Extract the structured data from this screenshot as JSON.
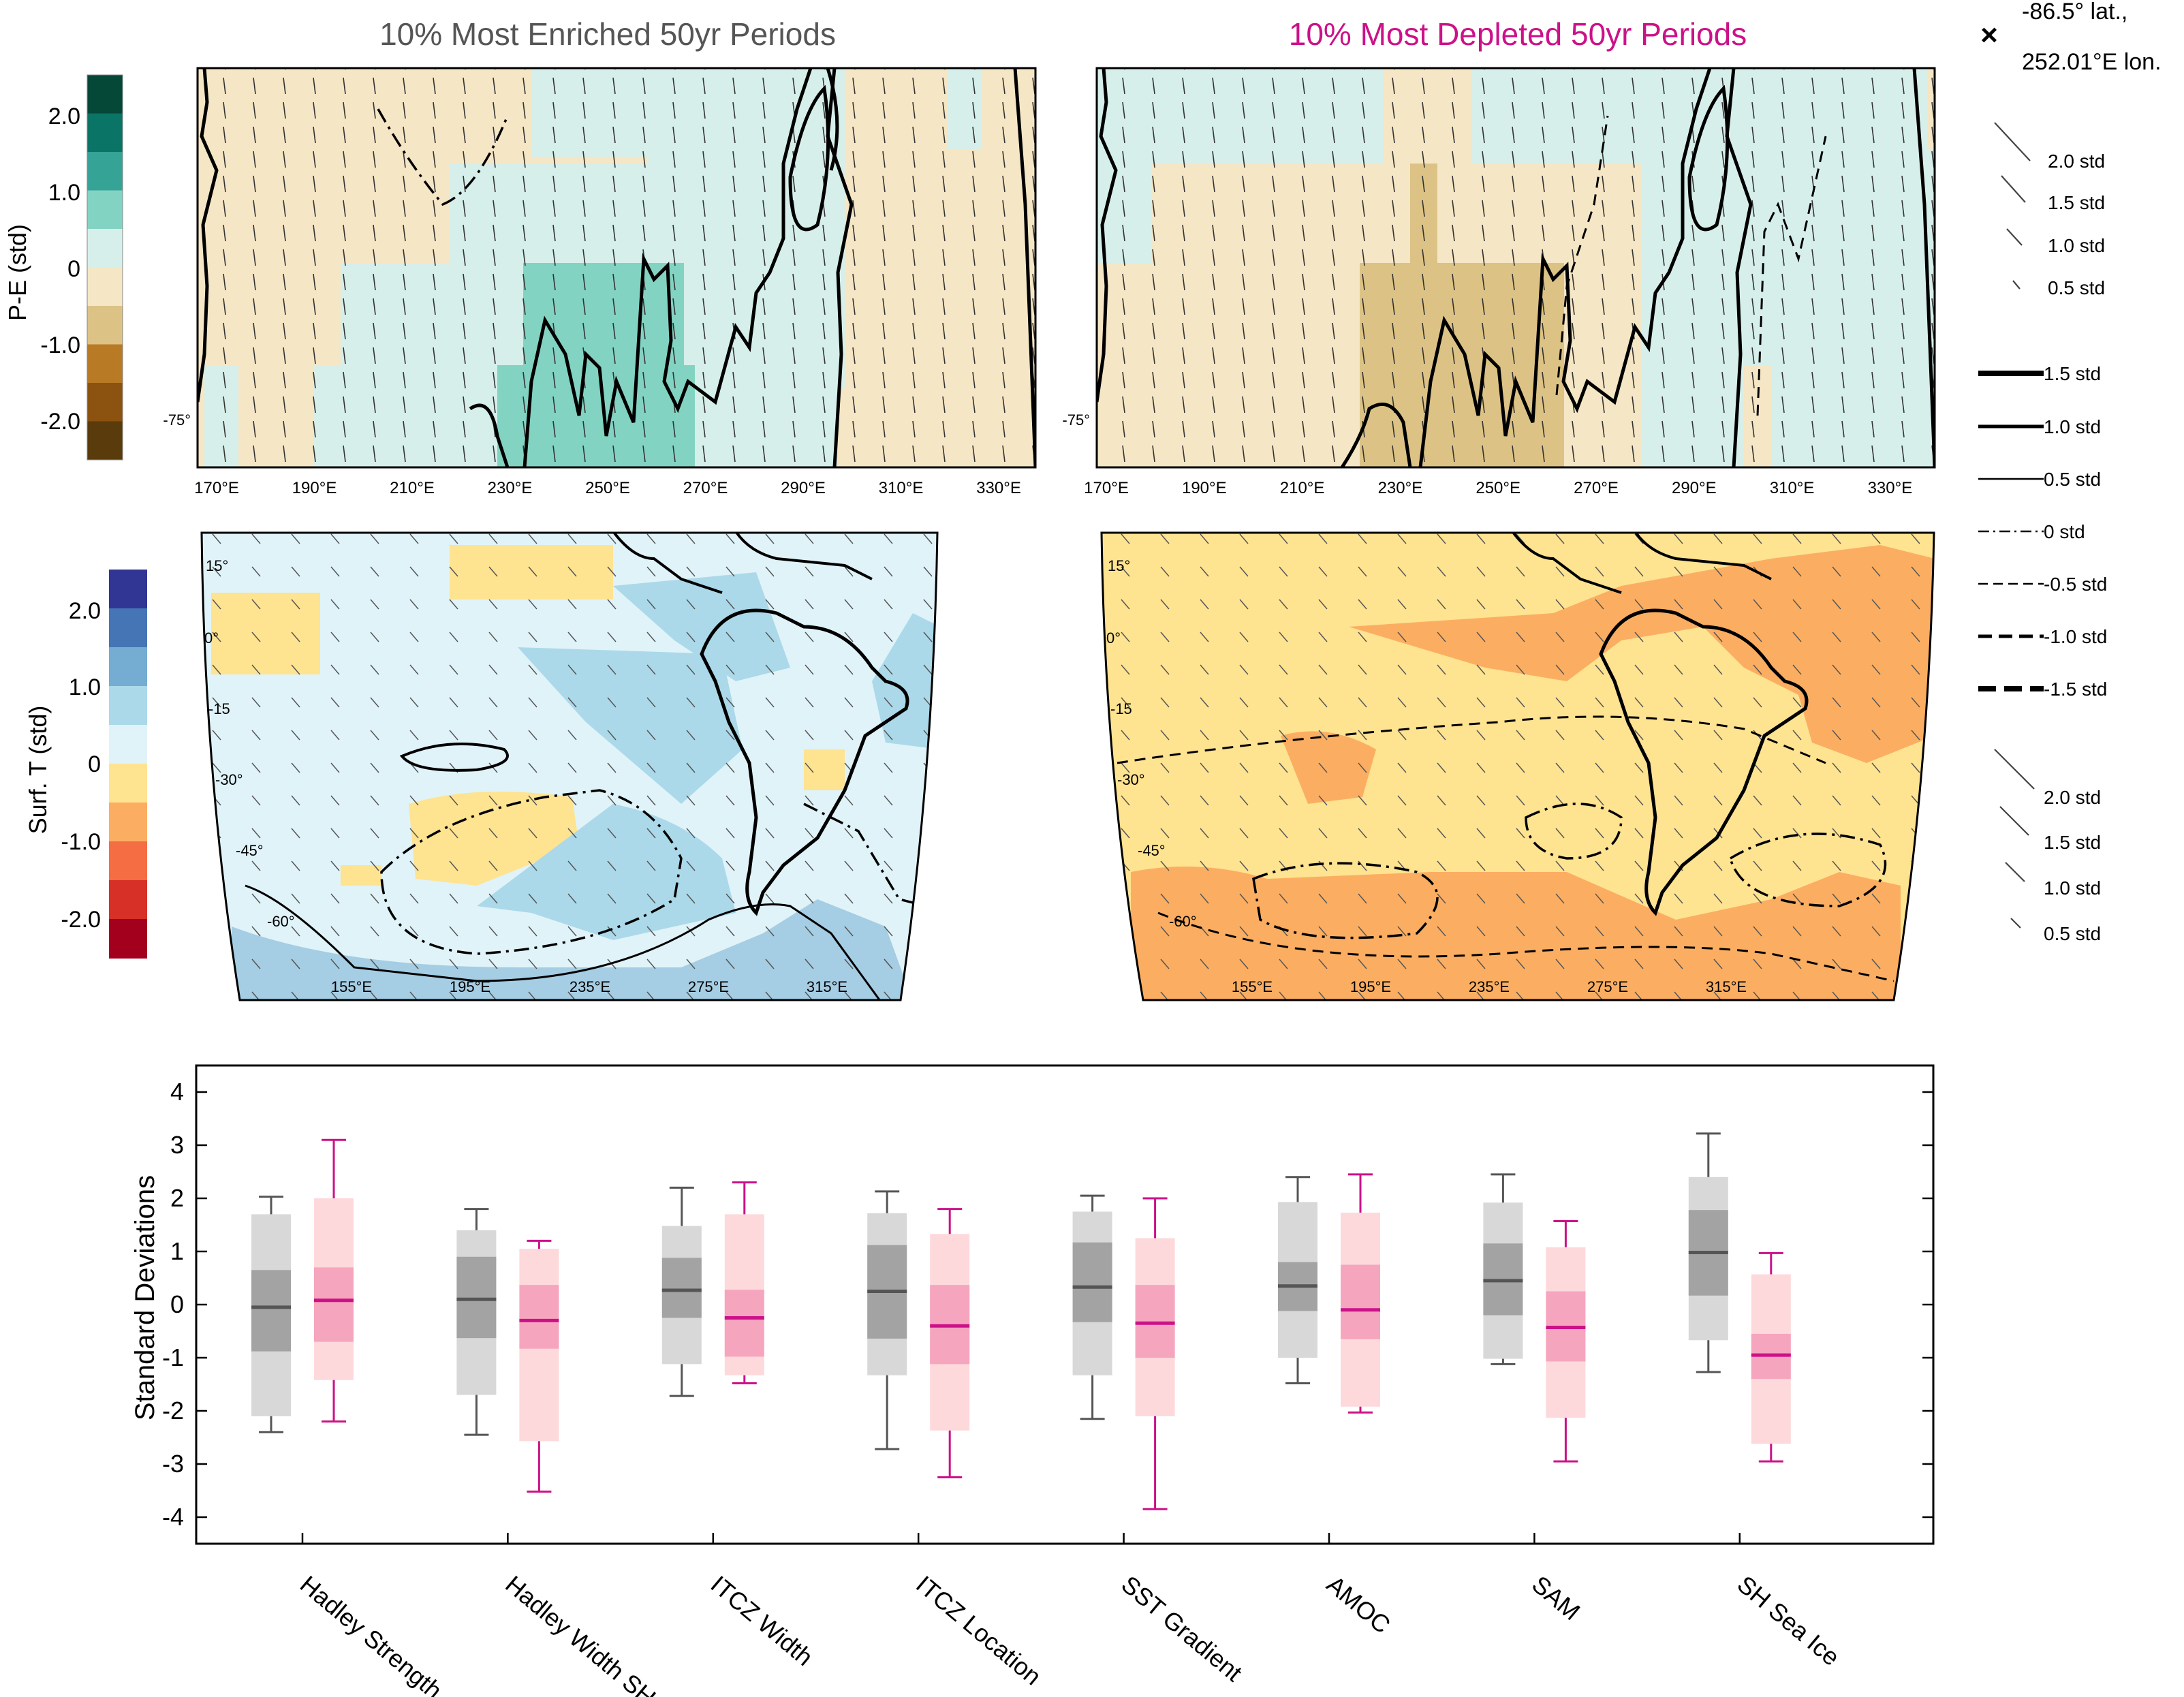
{
  "titles": {
    "enriched": "10% Most Enriched 50yr Periods",
    "depleted": "10% Most Depleted 50yr Periods"
  },
  "location": {
    "line1": "-86.5° lat.,",
    "line2": "252.01°E lon."
  },
  "colors": {
    "enriched_title": "#555555",
    "depleted_title": "#cc1188",
    "enriched_box_outer": "#d8d8d8",
    "enriched_box_inner": "#a3a3a3",
    "enriched_median": "#555555",
    "depleted_box_outer": "#fdd9dc",
    "depleted_box_inner": "#f6a5bf",
    "depleted_median": "#cc1188",
    "pe_scale": [
      "#5a3b0b",
      "#8c520f",
      "#b87a25",
      "#dcc385",
      "#f5e6c5",
      "#d6efea",
      "#83d3c3",
      "#36a397",
      "#0a7466",
      "#064838"
    ],
    "t_scale": [
      "#a3001e",
      "#d73027",
      "#f46d43",
      "#fbae61",
      "#fee391",
      "#e0f3f8",
      "#abd9e9",
      "#74add1",
      "#4575b4",
      "#313695"
    ]
  },
  "pe_colorbar": {
    "label": "P-E (std)",
    "ticks": [
      "2.0",
      "1.0",
      "0",
      "-1.0",
      "-2.0"
    ]
  },
  "t_colorbar": {
    "label": "Surf. T (std)",
    "ticks": [
      "2.0",
      "1.0",
      "0",
      "-1.0",
      "-2.0"
    ]
  },
  "pe_map": {
    "lat_label": "-75°",
    "lon_labels": [
      "170°E",
      "190°E",
      "210°E",
      "230°E",
      "250°E",
      "270°E",
      "290°E",
      "310°E",
      "330°E"
    ]
  },
  "t_map": {
    "lat_labels": [
      "15°",
      "0°",
      "-15",
      "-30°",
      "-45°",
      "-60°"
    ],
    "lon_labels": [
      "155°E",
      "195°E",
      "235°E",
      "275°E",
      "315°E"
    ]
  },
  "legend": {
    "arrows_top": [
      "2.0 std",
      "1.5 std",
      "1.0 std",
      "0.5 std"
    ],
    "lines": [
      "1.5 std",
      "1.0 std",
      "0.5 std",
      "0 std",
      "-0.5 std",
      "-1.0 std",
      "-1.5 std"
    ],
    "arrows_bottom": [
      "2.0 std",
      "1.5 std",
      "1.0 std",
      "0.5 std"
    ]
  },
  "chart_data": {
    "type": "box",
    "ylabel": "Standard Deviations",
    "ylim": [
      -4.5,
      4.5
    ],
    "yticks": [
      4,
      3,
      2,
      1,
      0,
      -1,
      -2,
      -3,
      -4
    ],
    "categories": [
      "Hadley Strength",
      "Hadley Width SH",
      "ITCZ Width",
      "ITCZ Location",
      "SST Gradient",
      "AMOC",
      "SAM",
      "SH Sea Ice"
    ],
    "series": [
      {
        "stats": [
          {
            "whisker_low": -2.4,
            "p10": -2.1,
            "q1": -0.88,
            "median": -0.05,
            "q3": 0.65,
            "p90": 1.7,
            "whisker_high": 2.03
          },
          {
            "whisker_low": -2.45,
            "p10": -1.7,
            "q1": -0.63,
            "median": 0.1,
            "q3": 0.9,
            "p90": 1.4,
            "whisker_high": 1.8
          },
          {
            "whisker_low": -1.72,
            "p10": -1.12,
            "q1": -0.25,
            "median": 0.27,
            "q3": 0.88,
            "p90": 1.48,
            "whisker_high": 2.2
          },
          {
            "whisker_low": -2.72,
            "p10": -1.33,
            "q1": -0.64,
            "median": 0.25,
            "q3": 1.12,
            "p90": 1.72,
            "whisker_high": 2.13
          },
          {
            "whisker_low": -2.15,
            "p10": -1.33,
            "q1": -0.33,
            "median": 0.33,
            "q3": 1.17,
            "p90": 1.75,
            "whisker_high": 2.05
          },
          {
            "whisker_low": -1.48,
            "p10": -1.0,
            "q1": -0.12,
            "median": 0.35,
            "q3": 0.8,
            "p90": 1.93,
            "whisker_high": 2.4
          },
          {
            "whisker_low": -1.12,
            "p10": -1.02,
            "q1": -0.2,
            "median": 0.45,
            "q3": 1.15,
            "p90": 1.92,
            "whisker_high": 2.45
          },
          {
            "whisker_low": -1.27,
            "p10": -0.67,
            "q1": 0.17,
            "median": 0.98,
            "q3": 1.78,
            "p90": 2.4,
            "whisker_high": 3.22
          }
        ]
      },
      {
        "stats": [
          {
            "whisker_low": -2.2,
            "p10": -1.42,
            "q1": -0.7,
            "median": 0.08,
            "q3": 0.7,
            "p90": 2.0,
            "whisker_high": 3.1
          },
          {
            "whisker_low": -3.52,
            "p10": -2.57,
            "q1": -0.83,
            "median": -0.3,
            "q3": 0.37,
            "p90": 1.05,
            "whisker_high": 1.2
          },
          {
            "whisker_low": -1.48,
            "p10": -1.33,
            "q1": -0.98,
            "median": -0.25,
            "q3": 0.28,
            "p90": 1.7,
            "whisker_high": 2.3
          },
          {
            "whisker_low": -3.25,
            "p10": -2.37,
            "q1": -1.12,
            "median": -0.4,
            "q3": 0.37,
            "p90": 1.33,
            "whisker_high": 1.8
          },
          {
            "whisker_low": -3.85,
            "p10": -2.1,
            "q1": -1.0,
            "median": -0.35,
            "q3": 0.37,
            "p90": 1.25,
            "whisker_high": 2.0
          },
          {
            "whisker_low": -2.03,
            "p10": -1.92,
            "q1": -0.65,
            "median": -0.1,
            "q3": 0.75,
            "p90": 1.73,
            "whisker_high": 2.45
          },
          {
            "whisker_low": -2.95,
            "p10": -2.13,
            "q1": -1.07,
            "median": -0.43,
            "q3": 0.25,
            "p90": 1.08,
            "whisker_high": 1.57
          },
          {
            "whisker_low": -2.95,
            "p10": -2.62,
            "q1": -1.4,
            "median": -0.95,
            "q3": -0.55,
            "p90": 0.57,
            "whisker_high": 0.97
          }
        ]
      }
    ]
  }
}
